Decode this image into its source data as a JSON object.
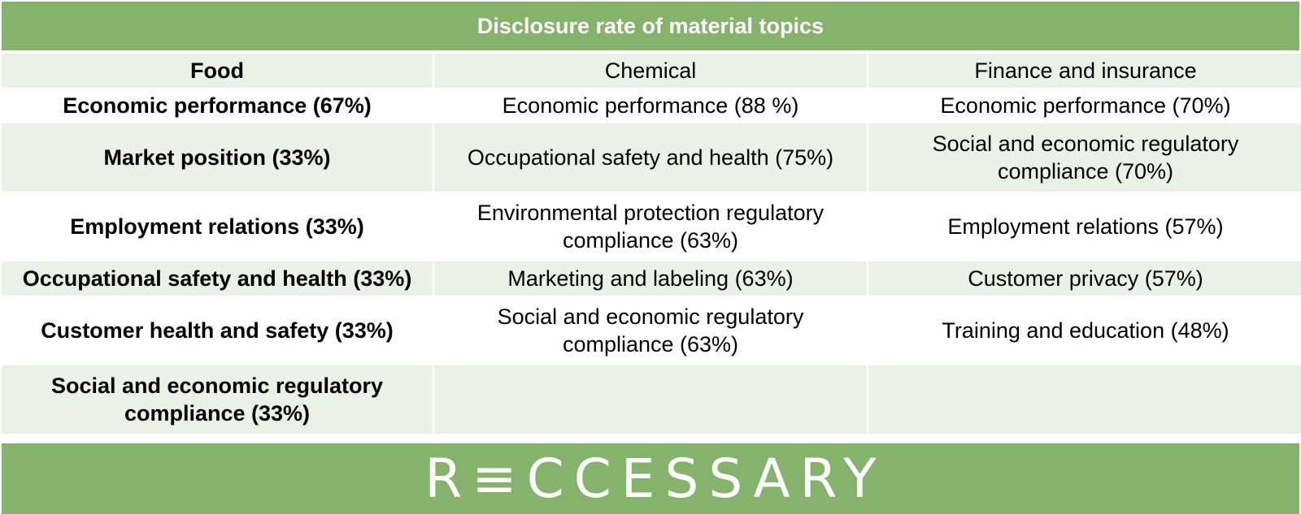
{
  "title": "Disclosure rate of material topics",
  "columns": {
    "food": "Food",
    "chemical": "Chemical",
    "finance": "Finance and insurance"
  },
  "rows": [
    {
      "food": "Economic performance (67%)",
      "chemical": "Economic performance (88 %)",
      "finance": "Economic performance (70%)"
    },
    {
      "food": "Market position (33%)",
      "chemical": "Occupational safety and health (75%)",
      "finance": "Social and economic regulatory compliance (70%)"
    },
    {
      "food": "Employment relations (33%)",
      "chemical": "Environmental protection regulatory compliance (63%)",
      "finance": "Employment relations (57%)"
    },
    {
      "food": "Occupational safety and health (33%)",
      "chemical": "Marketing and labeling (63%)",
      "finance": "Customer privacy (57%)"
    },
    {
      "food": "Customer health and safety (33%)",
      "chemical": "Social and economic regulatory compliance (63%)",
      "finance": "Training and education (48%)"
    },
    {
      "food": "Social and economic regulatory compliance (33%)",
      "chemical": "",
      "finance": ""
    }
  ],
  "logo": "R≡CCESSARY",
  "colors": {
    "header_green": "#85b36b",
    "row_shade": "#ebf1e6"
  }
}
